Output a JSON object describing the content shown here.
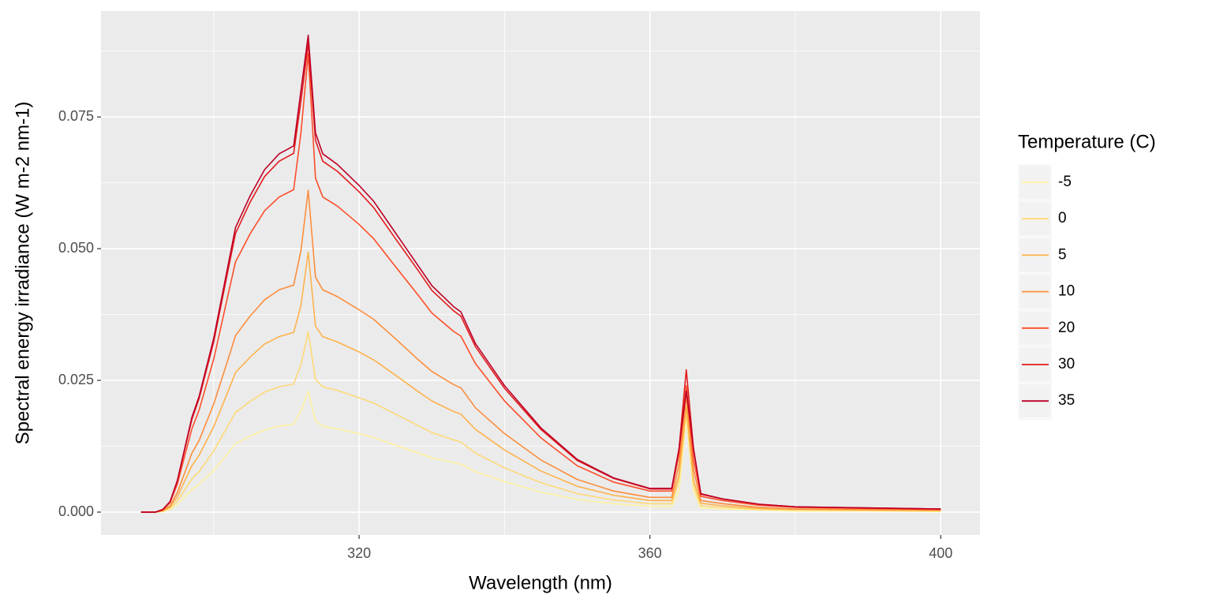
{
  "chart_data": {
    "type": "line",
    "x_label": "Wavelength (nm)",
    "y_label": "Spectral energy irradiance (W m-2 nm-1)",
    "legend_title": "Temperature (C)",
    "legend_position": "right",
    "grid": true,
    "xlim": [
      284.5,
      405.4
    ],
    "ylim": [
      -0.00434,
      0.0951
    ],
    "xticks": [
      320,
      360,
      400
    ],
    "yticks": [
      {
        "value": 0,
        "label": "0.000"
      },
      {
        "value": 0.025,
        "label": "0.025"
      },
      {
        "value": 0.05,
        "label": "0.050"
      },
      {
        "value": 0.075,
        "label": "0.075"
      }
    ],
    "x": [
      290,
      292,
      293,
      294,
      295,
      296,
      297,
      298,
      300,
      302,
      303,
      305,
      307,
      309,
      311,
      312,
      313,
      314,
      315,
      317,
      320,
      322,
      325,
      328,
      330,
      333,
      334,
      336,
      340,
      345,
      350,
      355,
      360,
      363,
      364,
      365,
      366,
      367,
      370,
      375,
      380,
      390,
      400
    ],
    "series": [
      {
        "name": "-5",
        "color": "#fff3a0",
        "values": [
          0,
          0,
          0.0001,
          0.0005,
          0.0015,
          0.0029,
          0.0043,
          0.0053,
          0.0079,
          0.0113,
          0.013,
          0.0144,
          0.0156,
          0.0163,
          0.0167,
          0.0192,
          0.0229,
          0.0173,
          0.0163,
          0.0158,
          0.0149,
          0.0142,
          0.0127,
          0.0113,
          0.0103,
          0.0094,
          0.0091,
          0.0077,
          0.0058,
          0.0038,
          0.0024,
          0.0016,
          0.0011,
          0.0011,
          0.004,
          0.018,
          0.004,
          0.0008,
          0.0006,
          0.0004,
          0.0002,
          0.0002,
          0.0001
        ]
      },
      {
        "name": "0",
        "color": "#fed976",
        "values": [
          0,
          0,
          0.0002,
          0.0007,
          0.0021,
          0.0042,
          0.0063,
          0.0077,
          0.0116,
          0.0165,
          0.0189,
          0.021,
          0.0228,
          0.0238,
          0.0243,
          0.028,
          0.0342,
          0.0252,
          0.0238,
          0.0231,
          0.0217,
          0.0207,
          0.0186,
          0.0165,
          0.0151,
          0.0137,
          0.0133,
          0.0112,
          0.0084,
          0.0056,
          0.0035,
          0.0023,
          0.0016,
          0.0016,
          0.006,
          0.019,
          0.005,
          0.0012,
          0.0009,
          0.0005,
          0.0004,
          0.0003,
          0.0002
        ]
      },
      {
        "name": "5",
        "color": "#feb24c",
        "values": [
          0,
          0,
          0.0002,
          0.001,
          0.0029,
          0.0059,
          0.0088,
          0.0108,
          0.0162,
          0.023,
          0.0265,
          0.0294,
          0.0319,
          0.0333,
          0.0341,
          0.0392,
          0.0493,
          0.0353,
          0.0333,
          0.0323,
          0.0304,
          0.0289,
          0.026,
          0.023,
          0.0211,
          0.0191,
          0.0186,
          0.0157,
          0.0118,
          0.0078,
          0.0049,
          0.0032,
          0.0022,
          0.0022,
          0.007,
          0.02,
          0.006,
          0.0017,
          0.0012,
          0.0007,
          0.0005,
          0.0004,
          0.0003
        ]
      },
      {
        "name": "10",
        "color": "#fd8d3c",
        "values": [
          0,
          0,
          0.0003,
          0.0012,
          0.0037,
          0.0074,
          0.0112,
          0.0136,
          0.0205,
          0.0291,
          0.0335,
          0.0372,
          0.0403,
          0.0422,
          0.0431,
          0.0496,
          0.0611,
          0.0446,
          0.0422,
          0.0409,
          0.0384,
          0.0366,
          0.0329,
          0.0291,
          0.0267,
          0.0242,
          0.0236,
          0.0198,
          0.0149,
          0.0099,
          0.0062,
          0.004,
          0.0028,
          0.0028,
          0.009,
          0.022,
          0.008,
          0.0022,
          0.0016,
          0.0009,
          0.0006,
          0.0005,
          0.0004
        ]
      },
      {
        "name": "20",
        "color": "#fc4e2a",
        "values": [
          0,
          0,
          0.0004,
          0.0018,
          0.0053,
          0.0106,
          0.0158,
          0.0194,
          0.029,
          0.0414,
          0.0475,
          0.0528,
          0.0572,
          0.0598,
          0.0612,
          0.072,
          0.087,
          0.0634,
          0.0598,
          0.0581,
          0.0546,
          0.0519,
          0.0466,
          0.0414,
          0.0378,
          0.0343,
          0.0334,
          0.0282,
          0.0211,
          0.0141,
          0.0088,
          0.0057,
          0.004,
          0.004,
          0.011,
          0.024,
          0.01,
          0.003,
          0.0022,
          0.0013,
          0.0009,
          0.0007,
          0.0005
        ]
      },
      {
        "name": "30",
        "color": "#e31a1c",
        "values": [
          0,
          0,
          0.0005,
          0.002,
          0.0059,
          0.0118,
          0.0176,
          0.0216,
          0.0323,
          0.0461,
          0.0529,
          0.0588,
          0.0637,
          0.0666,
          0.0681,
          0.078,
          0.089,
          0.0706,
          0.0666,
          0.0647,
          0.0608,
          0.0578,
          0.0519,
          0.0461,
          0.0421,
          0.0382,
          0.0372,
          0.0314,
          0.0235,
          0.0157,
          0.0098,
          0.0064,
          0.0044,
          0.0044,
          0.012,
          0.027,
          0.012,
          0.0034,
          0.0025,
          0.0015,
          0.001,
          0.0008,
          0.0006
        ]
      },
      {
        "name": "35",
        "color": "#bd0026",
        "values": [
          0,
          0,
          0.0005,
          0.002,
          0.006,
          0.012,
          0.018,
          0.022,
          0.033,
          0.047,
          0.054,
          0.06,
          0.065,
          0.068,
          0.0695,
          0.08,
          0.0905,
          0.072,
          0.068,
          0.066,
          0.062,
          0.059,
          0.053,
          0.047,
          0.043,
          0.039,
          0.038,
          0.032,
          0.024,
          0.016,
          0.01,
          0.0065,
          0.0045,
          0.0045,
          0.012,
          0.023,
          0.012,
          0.0035,
          0.0025,
          0.0015,
          0.001,
          0.0008,
          0.0006
        ]
      }
    ]
  }
}
